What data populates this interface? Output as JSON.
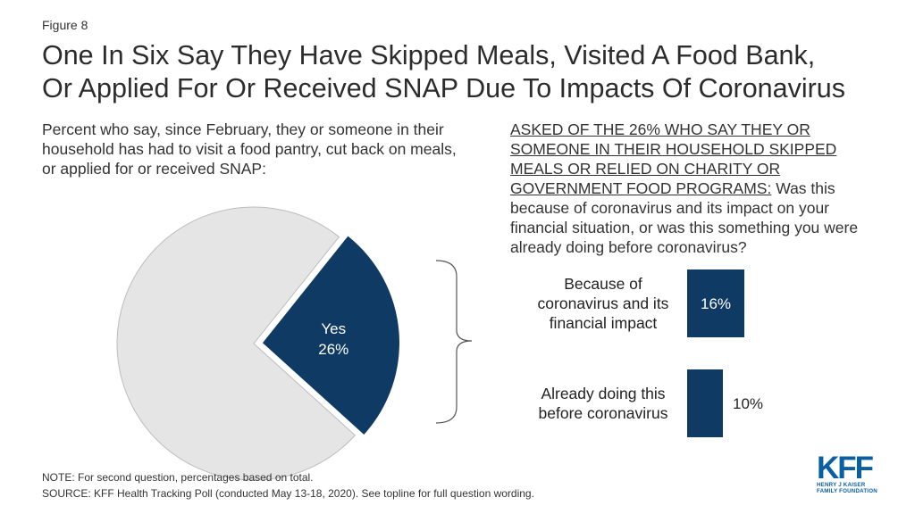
{
  "figure_label": "Figure 8",
  "title_line1": "One In Six Say They Have Skipped Meals, Visited A Food Bank,",
  "title_line2": "Or Applied For Or Received SNAP Due To Impacts Of Coronavirus",
  "left_question": "Percent who say, since February, they or someone in their household has had to visit a food pantry, cut back on meals, or applied for or received SNAP:",
  "right_question_underlined": "Asked of the 26% who say they or someone in their household skipped meals or relied on charity or government food programs:",
  "right_question_rest": " Was this because of coronavirus and its impact on your financial situation, or was this something you were already doing before coronavirus?",
  "note": "NOTE: For second question, percentages based on total.",
  "source": "SOURCE: KFF Health Tracking Poll (conducted May 13-18, 2020). See topline for full question wording.",
  "logo": {
    "mark": "KFF",
    "sub_line1": "HENRY J KAISER",
    "sub_line2": "FAMILY FOUNDATION"
  },
  "colors": {
    "navy": "#0e3a63",
    "gray": "#e5e5e5",
    "gray_stroke": "#bdbdbd",
    "bracket": "#555555"
  },
  "chart_data": [
    {
      "type": "pie",
      "slices": [
        {
          "name": "Yes",
          "value": 26,
          "label": "26%"
        },
        {
          "name": "",
          "value": 74,
          "label": ""
        }
      ]
    },
    {
      "type": "bar",
      "orientation": "horizontal",
      "categories": [
        "Because of coronavirus and its financial impact",
        "Already doing this before coronavirus"
      ],
      "category_lines": [
        [
          "Because of",
          "coronavirus and its",
          "financial impact"
        ],
        [
          "Already doing this",
          "before coronavirus"
        ]
      ],
      "values": [
        16,
        10
      ],
      "value_labels": [
        "16%",
        "10%"
      ]
    }
  ]
}
